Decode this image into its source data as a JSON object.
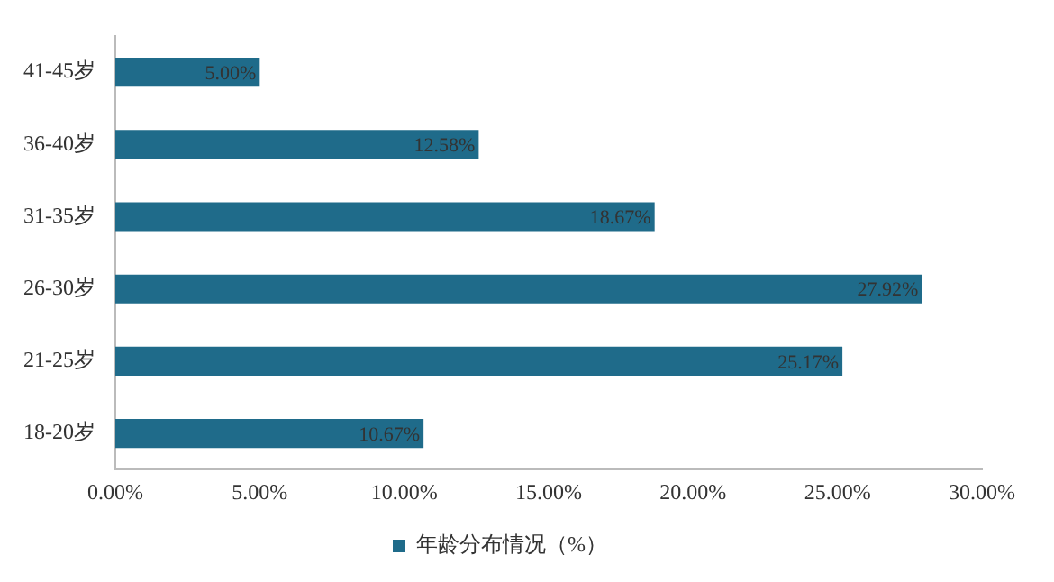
{
  "chart_data": {
    "type": "bar",
    "orientation": "horizontal",
    "categories": [
      "41-45岁",
      "36-40岁",
      "31-35岁",
      "26-30岁",
      "21-25岁",
      "18-20岁"
    ],
    "series": [
      {
        "name": "年龄分布情况（%）",
        "color": "#1f6b8a",
        "values": [
          5.0,
          12.58,
          18.67,
          27.92,
          25.17,
          10.67
        ],
        "value_labels": [
          "5.00%",
          "12.58%",
          "18.67%",
          "27.92%",
          "25.17%",
          "10.67%"
        ]
      }
    ],
    "xlim": [
      0,
      30
    ],
    "xticks": [
      {
        "value": 0,
        "label": "0.00%"
      },
      {
        "value": 5,
        "label": "5.00%"
      },
      {
        "value": 10,
        "label": "10.00%"
      },
      {
        "value": 15,
        "label": "15.00%"
      },
      {
        "value": 20,
        "label": "20.00%"
      },
      {
        "value": 25,
        "label": "25.00%"
      },
      {
        "value": 30,
        "label": "30.00%"
      }
    ],
    "grid": false,
    "legend": "bottom"
  }
}
